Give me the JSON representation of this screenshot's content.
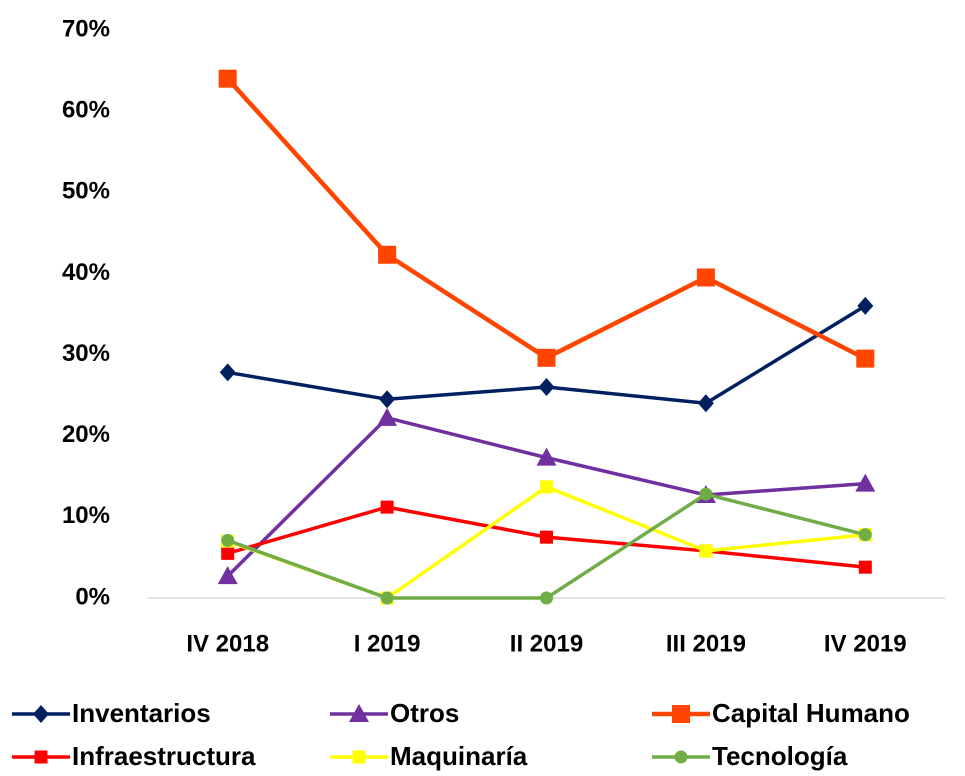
{
  "chart_data": {
    "type": "line",
    "categories": [
      "IV 2018",
      "I 2019",
      "II 2019",
      "III 2019",
      "IV 2019"
    ],
    "series": [
      {
        "name": "Inventarios",
        "color": "#002060",
        "marker": "diamond",
        "values": [
          27.8,
          24.5,
          26,
          24,
          36
        ]
      },
      {
        "name": "Otros",
        "color": "#7030a0",
        "marker": "triangle",
        "values": [
          2.7,
          22.2,
          17.3,
          12.7,
          14.1
        ]
      },
      {
        "name": "Capital Humano",
        "color": "#ff4500",
        "marker": "square",
        "values": [
          64,
          42.3,
          29.6,
          39.5,
          29.5
        ]
      },
      {
        "name": "Infraestructura",
        "color": "#ff0000",
        "marker": "square",
        "values": [
          5.5,
          11.2,
          7.5,
          5.8,
          3.8
        ]
      },
      {
        "name": "Maquinaría",
        "color": "#ffff00",
        "marker": "square",
        "values": [
          7,
          0,
          13.7,
          5.8,
          7.8
        ]
      },
      {
        "name": "Tecnología",
        "color": "#70ad47",
        "marker": "circle",
        "values": [
          7.1,
          0,
          0,
          12.8,
          7.8
        ]
      }
    ],
    "ylim": [
      0,
      70
    ],
    "yticks": [
      {
        "value": 0,
        "label": "0%"
      },
      {
        "value": 10,
        "label": "10%"
      },
      {
        "value": 20,
        "label": "20%"
      },
      {
        "value": 30,
        "label": "30%"
      },
      {
        "value": 40,
        "label": "40%"
      },
      {
        "value": 50,
        "label": "50%"
      },
      {
        "value": 60,
        "label": "60%"
      },
      {
        "value": 70,
        "label": "70%"
      }
    ],
    "grid": false
  }
}
